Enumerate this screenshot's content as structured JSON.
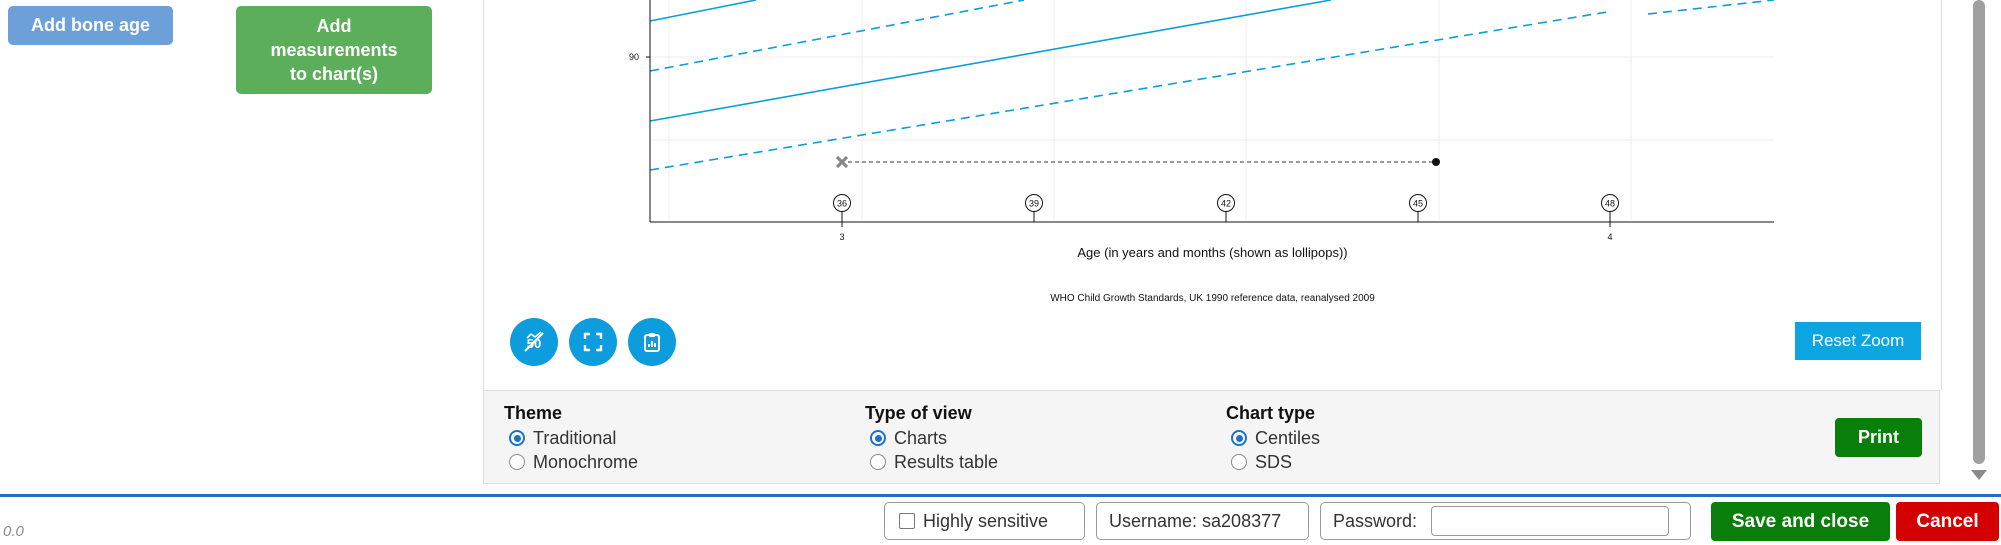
{
  "left_buttons": {
    "bone_age_label": "Add bone age",
    "add_measurements_label": "Add\nmeasurements\nto chart(s)"
  },
  "chart_data": {
    "type": "line",
    "xlabel": "Age (in years and months (shown as lollipops))",
    "source": "WHO Child Growth Standards, UK 1990 reference data, reanalysed 2009",
    "y_tick_labels": [
      "90"
    ],
    "x_tick_labels": [
      "3",
      "4"
    ],
    "age_month_lollipops": [
      "36",
      "39",
      "42",
      "45",
      "48"
    ],
    "lines_note": "Visible segments of centile lines, solid and dashed, all rising left to right",
    "measurement": {
      "corrected_marker": "cross",
      "chronological_marker": "dot",
      "connector": "dashed"
    },
    "colors": {
      "centile": "#0a9fd6",
      "grid": "#ececec",
      "connector": "#999999"
    }
  },
  "chart_controls": {
    "icons": [
      "fifty-centile-icon",
      "fullscreen-icon",
      "clipboard-chart-icon"
    ],
    "reset_zoom_label": "Reset Zoom"
  },
  "options": {
    "theme": {
      "title": "Theme",
      "items": [
        "Traditional",
        "Monochrome"
      ],
      "selected": "Traditional"
    },
    "view": {
      "title": "Type of view",
      "items": [
        "Charts",
        "Results table"
      ],
      "selected": "Charts"
    },
    "chart_type": {
      "title": "Chart type",
      "items": [
        "Centiles",
        "SDS"
      ],
      "selected": "Centiles"
    },
    "print_label": "Print"
  },
  "footer": {
    "version": "0.0",
    "sensitive_label": "Highly sensitive",
    "username_label": "Username: sa208377",
    "password_label": "Password:",
    "password_value": "",
    "save_label": "Save and close",
    "cancel_label": "Cancel"
  },
  "accent_colors": {
    "primary_blue": "#2a6cc4",
    "save_green": "#0a7e0a",
    "cancel_red": "#d40000"
  }
}
